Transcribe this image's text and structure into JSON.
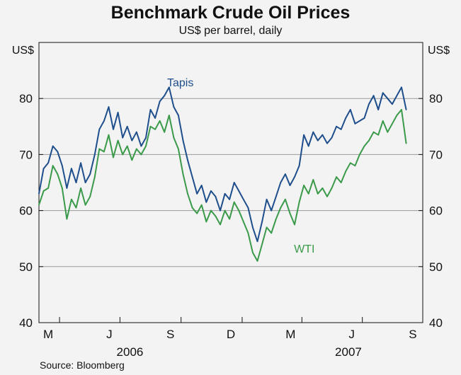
{
  "title": "Benchmark Crude Oil Prices",
  "subtitle": "US$ per barrel, daily",
  "source": "Source: Bloomberg",
  "chart_data": {
    "type": "line",
    "left_unit": "US$",
    "right_unit": "US$",
    "ylim": [
      40,
      90
    ],
    "yticks": [
      40,
      50,
      60,
      70,
      80
    ],
    "grid": true,
    "x_range": [
      "2006-03-01",
      "2007-09-30"
    ],
    "month_ticks": [
      "2006-04-01",
      "2006-07-01",
      "2006-10-01",
      "2007-01-01",
      "2007-04-01",
      "2007-07-01"
    ],
    "month_labels": [
      {
        "label": "M",
        "date": "2006-03-15"
      },
      {
        "label": "J",
        "date": "2006-06-15"
      },
      {
        "label": "S",
        "date": "2006-09-15"
      },
      {
        "label": "D",
        "date": "2006-12-15"
      },
      {
        "label": "M",
        "date": "2007-03-15"
      },
      {
        "label": "J",
        "date": "2007-06-15"
      },
      {
        "label": "S",
        "date": "2007-09-15"
      }
    ],
    "year_labels": [
      {
        "label": "2006",
        "date": "2006-07-16"
      },
      {
        "label": "2007",
        "date": "2007-06-10"
      }
    ],
    "series": [
      {
        "name": "Tapis",
        "color": "#1f4e8c",
        "label_date": "2006-09-10",
        "label_value": 82.2,
        "points": [
          [
            "2006-03-01",
            63.0
          ],
          [
            "2006-03-08",
            67.5
          ],
          [
            "2006-03-15",
            68.5
          ],
          [
            "2006-03-22",
            71.5
          ],
          [
            "2006-03-29",
            70.5
          ],
          [
            "2006-04-05",
            68.0
          ],
          [
            "2006-04-12",
            64.0
          ],
          [
            "2006-04-19",
            67.5
          ],
          [
            "2006-04-26",
            65.0
          ],
          [
            "2006-05-03",
            68.5
          ],
          [
            "2006-05-10",
            65.0
          ],
          [
            "2006-05-17",
            66.5
          ],
          [
            "2006-05-24",
            70.0
          ],
          [
            "2006-05-31",
            74.5
          ],
          [
            "2006-06-07",
            76.0
          ],
          [
            "2006-06-14",
            78.5
          ],
          [
            "2006-06-21",
            74.5
          ],
          [
            "2006-06-28",
            77.5
          ],
          [
            "2006-07-05",
            73.0
          ],
          [
            "2006-07-12",
            75.0
          ],
          [
            "2006-07-19",
            72.5
          ],
          [
            "2006-07-26",
            74.0
          ],
          [
            "2006-08-02",
            71.5
          ],
          [
            "2006-08-09",
            73.0
          ],
          [
            "2006-08-16",
            78.0
          ],
          [
            "2006-08-23",
            76.5
          ],
          [
            "2006-08-30",
            79.5
          ],
          [
            "2006-09-06",
            80.5
          ],
          [
            "2006-09-13",
            82.0
          ],
          [
            "2006-09-20",
            78.5
          ],
          [
            "2006-09-27",
            77.0
          ],
          [
            "2006-10-04",
            72.5
          ],
          [
            "2006-10-11",
            69.0
          ],
          [
            "2006-10-18",
            66.0
          ],
          [
            "2006-10-25",
            63.0
          ],
          [
            "2006-11-01",
            64.5
          ],
          [
            "2006-11-08",
            61.5
          ],
          [
            "2006-11-15",
            63.5
          ],
          [
            "2006-11-22",
            62.5
          ],
          [
            "2006-11-29",
            60.0
          ],
          [
            "2006-12-06",
            63.0
          ],
          [
            "2006-12-13",
            62.0
          ],
          [
            "2006-12-20",
            65.0
          ],
          [
            "2006-12-27",
            63.5
          ],
          [
            "2007-01-03",
            62.0
          ],
          [
            "2007-01-10",
            60.5
          ],
          [
            "2007-01-17",
            57.0
          ],
          [
            "2007-01-24",
            54.5
          ],
          [
            "2007-01-31",
            58.0
          ],
          [
            "2007-02-07",
            62.0
          ],
          [
            "2007-02-14",
            60.0
          ],
          [
            "2007-02-21",
            62.5
          ],
          [
            "2007-02-28",
            65.0
          ],
          [
            "2007-03-07",
            66.5
          ],
          [
            "2007-03-14",
            64.5
          ],
          [
            "2007-03-21",
            66.0
          ],
          [
            "2007-03-28",
            68.0
          ],
          [
            "2007-04-04",
            73.5
          ],
          [
            "2007-04-11",
            71.5
          ],
          [
            "2007-04-18",
            74.0
          ],
          [
            "2007-04-25",
            72.5
          ],
          [
            "2007-05-02",
            73.5
          ],
          [
            "2007-05-09",
            72.0
          ],
          [
            "2007-05-16",
            73.0
          ],
          [
            "2007-05-23",
            75.0
          ],
          [
            "2007-05-30",
            74.5
          ],
          [
            "2007-06-06",
            76.5
          ],
          [
            "2007-06-13",
            78.0
          ],
          [
            "2007-06-20",
            75.5
          ],
          [
            "2007-06-27",
            76.0
          ],
          [
            "2007-07-04",
            76.5
          ],
          [
            "2007-07-11",
            79.0
          ],
          [
            "2007-07-18",
            80.5
          ],
          [
            "2007-07-25",
            78.0
          ],
          [
            "2007-08-01",
            81.0
          ],
          [
            "2007-08-08",
            80.0
          ],
          [
            "2007-08-15",
            79.0
          ],
          [
            "2007-08-22",
            80.5
          ],
          [
            "2007-08-29",
            82.0
          ],
          [
            "2007-09-05",
            78.0
          ]
        ]
      },
      {
        "name": "WTI",
        "color": "#3a9a4a",
        "label_date": "2007-03-20",
        "label_value": 52.5,
        "points": [
          [
            "2006-03-01",
            61.0
          ],
          [
            "2006-03-08",
            63.5
          ],
          [
            "2006-03-15",
            64.0
          ],
          [
            "2006-03-22",
            68.0
          ],
          [
            "2006-03-29",
            66.5
          ],
          [
            "2006-04-05",
            64.0
          ],
          [
            "2006-04-12",
            58.5
          ],
          [
            "2006-04-19",
            62.0
          ],
          [
            "2006-04-26",
            60.5
          ],
          [
            "2006-05-03",
            64.0
          ],
          [
            "2006-05-10",
            61.0
          ],
          [
            "2006-05-17",
            62.5
          ],
          [
            "2006-05-24",
            66.0
          ],
          [
            "2006-05-31",
            71.0
          ],
          [
            "2006-06-07",
            70.5
          ],
          [
            "2006-06-14",
            73.5
          ],
          [
            "2006-06-21",
            69.5
          ],
          [
            "2006-06-28",
            72.5
          ],
          [
            "2006-07-05",
            70.0
          ],
          [
            "2006-07-12",
            71.5
          ],
          [
            "2006-07-19",
            69.0
          ],
          [
            "2006-07-26",
            71.0
          ],
          [
            "2006-08-02",
            70.0
          ],
          [
            "2006-08-09",
            71.5
          ],
          [
            "2006-08-16",
            75.0
          ],
          [
            "2006-08-23",
            74.5
          ],
          [
            "2006-08-30",
            76.0
          ],
          [
            "2006-09-06",
            74.0
          ],
          [
            "2006-09-13",
            77.0
          ],
          [
            "2006-09-20",
            73.0
          ],
          [
            "2006-09-27",
            71.0
          ],
          [
            "2006-10-04",
            66.5
          ],
          [
            "2006-10-11",
            63.0
          ],
          [
            "2006-10-18",
            60.5
          ],
          [
            "2006-10-25",
            59.5
          ],
          [
            "2006-11-01",
            61.0
          ],
          [
            "2006-11-08",
            58.0
          ],
          [
            "2006-11-15",
            60.0
          ],
          [
            "2006-11-22",
            59.0
          ],
          [
            "2006-11-29",
            57.5
          ],
          [
            "2006-12-06",
            60.0
          ],
          [
            "2006-12-13",
            58.5
          ],
          [
            "2006-12-20",
            61.5
          ],
          [
            "2006-12-27",
            60.0
          ],
          [
            "2007-01-03",
            58.0
          ],
          [
            "2007-01-10",
            56.0
          ],
          [
            "2007-01-17",
            52.5
          ],
          [
            "2007-01-24",
            51.0
          ],
          [
            "2007-01-31",
            54.0
          ],
          [
            "2007-02-07",
            57.0
          ],
          [
            "2007-02-14",
            56.0
          ],
          [
            "2007-02-21",
            58.5
          ],
          [
            "2007-02-28",
            60.5
          ],
          [
            "2007-03-07",
            62.0
          ],
          [
            "2007-03-14",
            59.5
          ],
          [
            "2007-03-21",
            57.5
          ],
          [
            "2007-03-28",
            61.5
          ],
          [
            "2007-04-04",
            64.5
          ],
          [
            "2007-04-11",
            63.0
          ],
          [
            "2007-04-18",
            65.5
          ],
          [
            "2007-04-25",
            63.0
          ],
          [
            "2007-05-02",
            64.0
          ],
          [
            "2007-05-09",
            62.5
          ],
          [
            "2007-05-16",
            64.0
          ],
          [
            "2007-05-23",
            66.0
          ],
          [
            "2007-05-30",
            65.0
          ],
          [
            "2007-06-06",
            67.0
          ],
          [
            "2007-06-13",
            68.5
          ],
          [
            "2007-06-20",
            68.0
          ],
          [
            "2007-06-27",
            70.0
          ],
          [
            "2007-07-04",
            71.5
          ],
          [
            "2007-07-11",
            72.5
          ],
          [
            "2007-07-18",
            74.0
          ],
          [
            "2007-07-25",
            73.5
          ],
          [
            "2007-08-01",
            76.0
          ],
          [
            "2007-08-08",
            74.0
          ],
          [
            "2007-08-15",
            75.5
          ],
          [
            "2007-08-22",
            77.0
          ],
          [
            "2007-08-29",
            78.0
          ],
          [
            "2007-09-05",
            72.0
          ]
        ]
      }
    ]
  }
}
